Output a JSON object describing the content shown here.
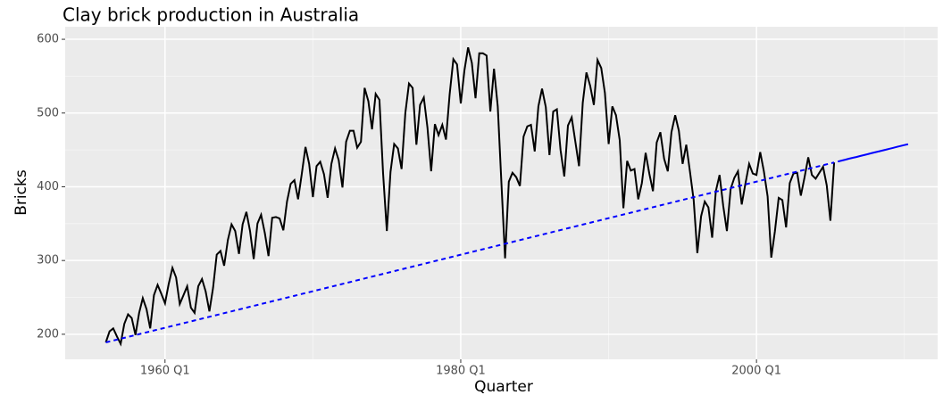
{
  "chart_data": {
    "type": "line",
    "title": "Clay brick production in Australia",
    "x_label": "Quarter",
    "y_label": "Bricks",
    "xlim": [
      "1953 Q2",
      "2012 Q2"
    ],
    "xticks": [
      "1960 Q1",
      "1980 Q1",
      "2000 Q1"
    ],
    "ylim": [
      166,
      617
    ],
    "yticks": [
      200,
      300,
      400,
      500,
      600
    ],
    "grid": true,
    "series": [
      {
        "color": "#000000",
        "dash": false,
        "x": [
          "1956 Q1",
          "1956 Q2",
          "1956 Q3",
          "1956 Q4",
          "1957 Q1",
          "1957 Q2",
          "1957 Q3",
          "1957 Q4",
          "1958 Q1",
          "1958 Q2",
          "1958 Q3",
          "1958 Q4",
          "1959 Q1",
          "1959 Q2",
          "1959 Q3",
          "1959 Q4",
          "1960 Q1",
          "1960 Q2",
          "1960 Q3",
          "1960 Q4",
          "1961 Q1",
          "1961 Q2",
          "1961 Q3",
          "1961 Q4",
          "1962 Q1",
          "1962 Q2",
          "1962 Q3",
          "1962 Q4",
          "1963 Q1",
          "1963 Q2",
          "1963 Q3",
          "1963 Q4",
          "1964 Q1",
          "1964 Q2",
          "1964 Q3",
          "1964 Q4",
          "1965 Q1",
          "1965 Q2",
          "1965 Q3",
          "1965 Q4",
          "1966 Q1",
          "1966 Q2",
          "1966 Q3",
          "1966 Q4",
          "1967 Q1",
          "1967 Q2",
          "1967 Q3",
          "1967 Q4",
          "1968 Q1",
          "1968 Q2",
          "1968 Q3",
          "1968 Q4",
          "1969 Q1",
          "1969 Q2",
          "1969 Q3",
          "1969 Q4",
          "1970 Q1",
          "1970 Q2",
          "1970 Q3",
          "1970 Q4",
          "1971 Q1",
          "1971 Q2",
          "1971 Q3",
          "1971 Q4",
          "1972 Q1",
          "1972 Q2",
          "1972 Q3",
          "1972 Q4",
          "1973 Q1",
          "1973 Q2",
          "1973 Q3",
          "1973 Q4",
          "1974 Q1",
          "1974 Q2",
          "1974 Q3",
          "1974 Q4",
          "1975 Q1",
          "1975 Q2",
          "1975 Q3",
          "1975 Q4",
          "1976 Q1",
          "1976 Q2",
          "1976 Q3",
          "1976 Q4",
          "1977 Q1",
          "1977 Q2",
          "1977 Q3",
          "1977 Q4",
          "1978 Q1",
          "1978 Q2",
          "1978 Q3",
          "1978 Q4",
          "1979 Q1",
          "1979 Q2",
          "1979 Q3",
          "1979 Q4",
          "1980 Q1",
          "1980 Q2",
          "1980 Q3",
          "1980 Q4",
          "1981 Q1",
          "1981 Q2",
          "1981 Q3",
          "1981 Q4",
          "1982 Q1",
          "1982 Q2",
          "1982 Q3",
          "1982 Q4",
          "1983 Q1",
          "1983 Q2",
          "1983 Q3",
          "1983 Q4",
          "1984 Q1",
          "1984 Q2",
          "1984 Q3",
          "1984 Q4",
          "1985 Q1",
          "1985 Q2",
          "1985 Q3",
          "1985 Q4",
          "1986 Q1",
          "1986 Q2",
          "1986 Q3",
          "1986 Q4",
          "1987 Q1",
          "1987 Q2",
          "1987 Q3",
          "1987 Q4",
          "1988 Q1",
          "1988 Q2",
          "1988 Q3",
          "1988 Q4",
          "1989 Q1",
          "1989 Q2",
          "1989 Q3",
          "1989 Q4",
          "1990 Q1",
          "1990 Q2",
          "1990 Q3",
          "1990 Q4",
          "1991 Q1",
          "1991 Q2",
          "1991 Q3",
          "1991 Q4",
          "1992 Q1",
          "1992 Q2",
          "1992 Q3",
          "1992 Q4",
          "1993 Q1",
          "1993 Q2",
          "1993 Q3",
          "1993 Q4",
          "1994 Q1",
          "1994 Q2",
          "1994 Q3",
          "1994 Q4",
          "1995 Q1",
          "1995 Q2",
          "1995 Q3",
          "1995 Q4",
          "1996 Q1",
          "1996 Q2",
          "1996 Q3",
          "1996 Q4",
          "1997 Q1",
          "1997 Q2",
          "1997 Q3",
          "1997 Q4",
          "1998 Q1",
          "1998 Q2",
          "1998 Q3",
          "1998 Q4",
          "1999 Q1",
          "1999 Q2",
          "1999 Q3",
          "1999 Q4",
          "2000 Q1",
          "2000 Q2",
          "2000 Q3",
          "2000 Q4",
          "2001 Q1",
          "2001 Q2",
          "2001 Q3",
          "2001 Q4",
          "2002 Q1",
          "2002 Q2",
          "2002 Q3",
          "2002 Q4",
          "2003 Q1",
          "2003 Q2",
          "2003 Q3",
          "2003 Q4",
          "2004 Q1",
          "2004 Q2",
          "2004 Q3",
          "2004 Q4",
          "2005 Q1",
          "2005 Q2"
        ],
        "values": [
          189,
          204,
          208,
          197,
          187,
          214,
          227,
          222,
          199,
          229,
          249,
          234,
          208,
          253,
          267,
          255,
          242,
          268,
          290,
          277,
          241,
          253,
          265,
          236,
          229,
          265,
          275,
          258,
          231,
          263,
          308,
          313,
          293,
          328,
          349,
          340,
          309,
          349,
          366,
          340,
          302,
          350,
          362,
          337,
          306,
          358,
          359,
          357,
          341,
          380,
          404,
          409,
          383,
          417,
          454,
          431,
          386,
          428,
          434,
          417,
          385,
          431,
          452,
          436,
          399,
          461,
          476,
          476,
          453,
          461,
          534,
          516,
          478,
          526,
          518,
          418,
          340,
          420,
          458,
          452,
          424,
          500,
          540,
          534,
          457,
          511,
          521,
          480,
          421,
          485,
          470,
          484,
          464,
          525,
          573,
          566,
          513,
          558,
          589,
          568,
          520,
          581,
          581,
          578,
          502,
          560,
          509,
          405,
          303,
          407,
          419,
          413,
          401,
          468,
          482,
          484,
          448,
          509,
          533,
          508,
          443,
          502,
          505,
          450,
          414,
          483,
          494,
          461,
          428,
          514,
          555,
          537,
          511,
          572,
          561,
          527,
          458,
          509,
          497,
          463,
          371,
          435,
          422,
          424,
          383,
          405,
          446,
          418,
          394,
          460,
          474,
          438,
          421,
          474,
          497,
          476,
          431,
          457,
          421,
          382,
          310,
          360,
          380,
          372,
          331,
          394,
          416,
          374,
          340,
          397,
          412,
          421,
          376,
          404,
          431,
          418,
          416,
          447,
          421,
          387,
          304,
          340,
          385,
          382,
          345,
          405,
          418,
          419,
          388,
          413,
          440,
          416,
          411,
          419,
          427,
          402,
          354,
          433
        ]
      },
      {
        "color": "#0000ff",
        "dash": true,
        "x": [
          "1956 Q1",
          "2005 Q2"
        ],
        "values": [
          189,
          433
        ]
      },
      {
        "color": "#0000ff",
        "dash": false,
        "x": [
          "2005 Q3",
          "2005 Q4",
          "2006 Q1",
          "2006 Q2",
          "2006 Q3",
          "2006 Q4",
          "2007 Q1",
          "2007 Q2",
          "2007 Q3",
          "2007 Q4",
          "2008 Q1",
          "2008 Q2",
          "2008 Q3",
          "2008 Q4",
          "2009 Q1",
          "2009 Q2",
          "2009 Q3",
          "2009 Q4",
          "2010 Q1",
          "2010 Q2"
        ],
        "values": [
          434.2,
          435.5,
          436.7,
          438.0,
          439.2,
          440.4,
          441.7,
          442.9,
          444.1,
          445.4,
          446.6,
          447.9,
          449.1,
          450.3,
          451.6,
          452.8,
          454.1,
          455.3,
          456.5,
          457.8
        ]
      }
    ]
  }
}
